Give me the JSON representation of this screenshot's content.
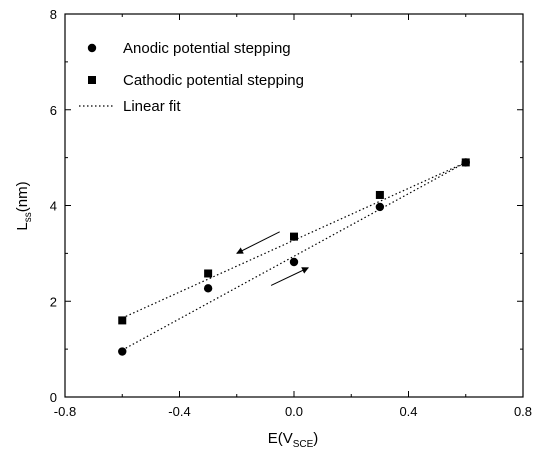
{
  "chart_data": {
    "type": "scatter",
    "title": "",
    "xlabel_main": "E(V",
    "xlabel_sub": "SCE",
    "xlabel_end": ")",
    "ylabel_main": "L",
    "ylabel_sub": "ss",
    "ylabel_end": "(nm)",
    "xlim": [
      -0.8,
      0.8
    ],
    "ylim": [
      0,
      8
    ],
    "xticks": [
      -0.8,
      -0.4,
      0.0,
      0.4,
      0.8
    ],
    "xtick_labels": [
      "-0.8",
      "-0.4",
      "0.0",
      "0.4",
      "0.8"
    ],
    "yticks": [
      0,
      2,
      4,
      6,
      8
    ],
    "ytick_labels": [
      "0",
      "2",
      "4",
      "6",
      "8"
    ],
    "grid": false,
    "legend_position": "top-left",
    "series": [
      {
        "name": "Anodic potential stepping",
        "marker": "circle",
        "x": [
          -0.6,
          -0.3,
          0.0,
          0.3,
          0.6
        ],
        "y": [
          0.95,
          2.27,
          2.82,
          3.97,
          4.9
        ]
      },
      {
        "name": "Cathodic potential stepping",
        "marker": "square",
        "x": [
          -0.6,
          -0.3,
          0.0,
          0.3,
          0.6
        ],
        "y": [
          1.6,
          2.58,
          3.35,
          4.22,
          4.9
        ]
      }
    ],
    "fits": [
      {
        "x": [
          -0.6,
          0.6
        ],
        "y": [
          0.98,
          4.9
        ]
      },
      {
        "x": [
          -0.6,
          0.6
        ],
        "y": [
          1.65,
          4.9
        ]
      }
    ],
    "fit_legend": "Linear fit",
    "arrows": [
      {
        "from": [
          -0.05,
          3.45
        ],
        "to": [
          -0.2,
          3.0
        ]
      },
      {
        "from": [
          -0.08,
          2.33
        ],
        "to": [
          0.05,
          2.7
        ]
      }
    ],
    "color": "#000000"
  }
}
